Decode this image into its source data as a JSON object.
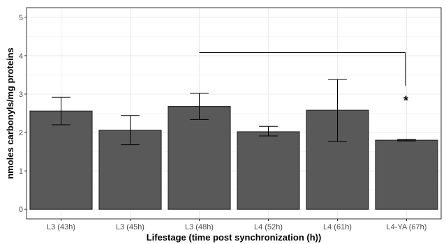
{
  "chart_data": {
    "type": "bar",
    "title": "",
    "xlabel": "Lifestage (time post synchronization (h))",
    "ylabel": "nmoles carbonyls/mg proteins",
    "categories": [
      "L3 (43h)",
      "L3 (45h)",
      "L3 (48h)",
      "L4 (52h)",
      "L4 (61h)",
      "L4-YA (67h)"
    ],
    "values": [
      2.56,
      2.06,
      2.68,
      2.02,
      2.58,
      1.8
    ],
    "error_low": [
      2.2,
      1.68,
      2.34,
      1.91,
      1.77,
      1.78
    ],
    "error_high": [
      2.92,
      2.44,
      3.02,
      2.16,
      3.38,
      1.82
    ],
    "ylim": [
      -0.25,
      5.25
    ],
    "yticks": [
      0,
      1,
      2,
      3,
      4,
      5
    ],
    "grid": true,
    "legend": "none",
    "bar_color": "#595959",
    "significance": {
      "from_category": "L3 (48h)",
      "to_category": "L4-YA (67h)",
      "y": 4.08,
      "label": "*"
    }
  }
}
